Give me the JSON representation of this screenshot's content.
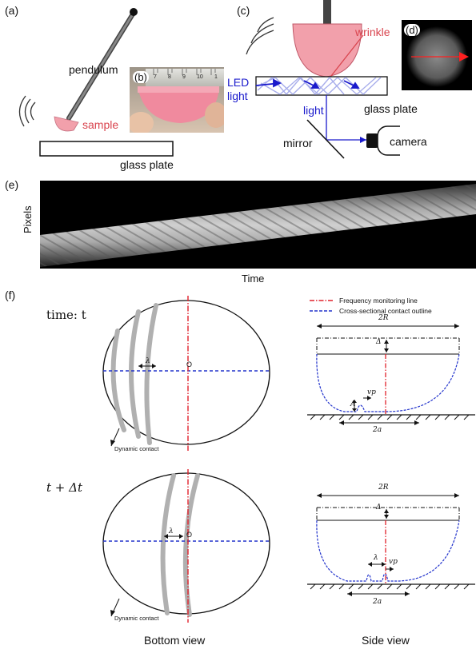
{
  "panels": {
    "a": "(a)",
    "b": "(b)",
    "c": "(c)",
    "d": "(d)",
    "e": "(e)",
    "f": "(f)"
  },
  "panel_a": {
    "pendulum": "pendulum",
    "sample": "sample",
    "glass_plate": "glass plate"
  },
  "panel_b": {
    "ruler_numbers": [
      "7",
      "8",
      "9",
      "10",
      "1"
    ]
  },
  "panel_c": {
    "wrinkle": "wrinkle",
    "led_light": [
      "LED",
      "light"
    ],
    "light": "light",
    "glass_plate": "glass plate",
    "mirror": "mirror",
    "camera": "camera"
  },
  "panel_e": {
    "y_label": "Pixels",
    "x_label": "Time"
  },
  "panel_f": {
    "time_top": "time: t",
    "time_bottom": "t + Δt",
    "legend": {
      "freq_line": "Frequency monitoring line",
      "contact_outline": "Cross-sectional contact outline"
    },
    "lambda": "λ",
    "origin": "O",
    "dynamic_contact": "Dynamic contact",
    "two_R": "2R",
    "delta": "Δ",
    "A": "A",
    "vp": "vp",
    "two_a": "2a",
    "bottom_view": "Bottom view",
    "side_view": "Side view"
  },
  "colors": {
    "sample_pink": "#f2a0ab",
    "wrinkle_red": "#d9444e",
    "light_blue": "#1a1acc",
    "freq_line_red": "#e0202a",
    "outline_blue": "#2233cc",
    "contact_gray": "#b0b0b0"
  }
}
